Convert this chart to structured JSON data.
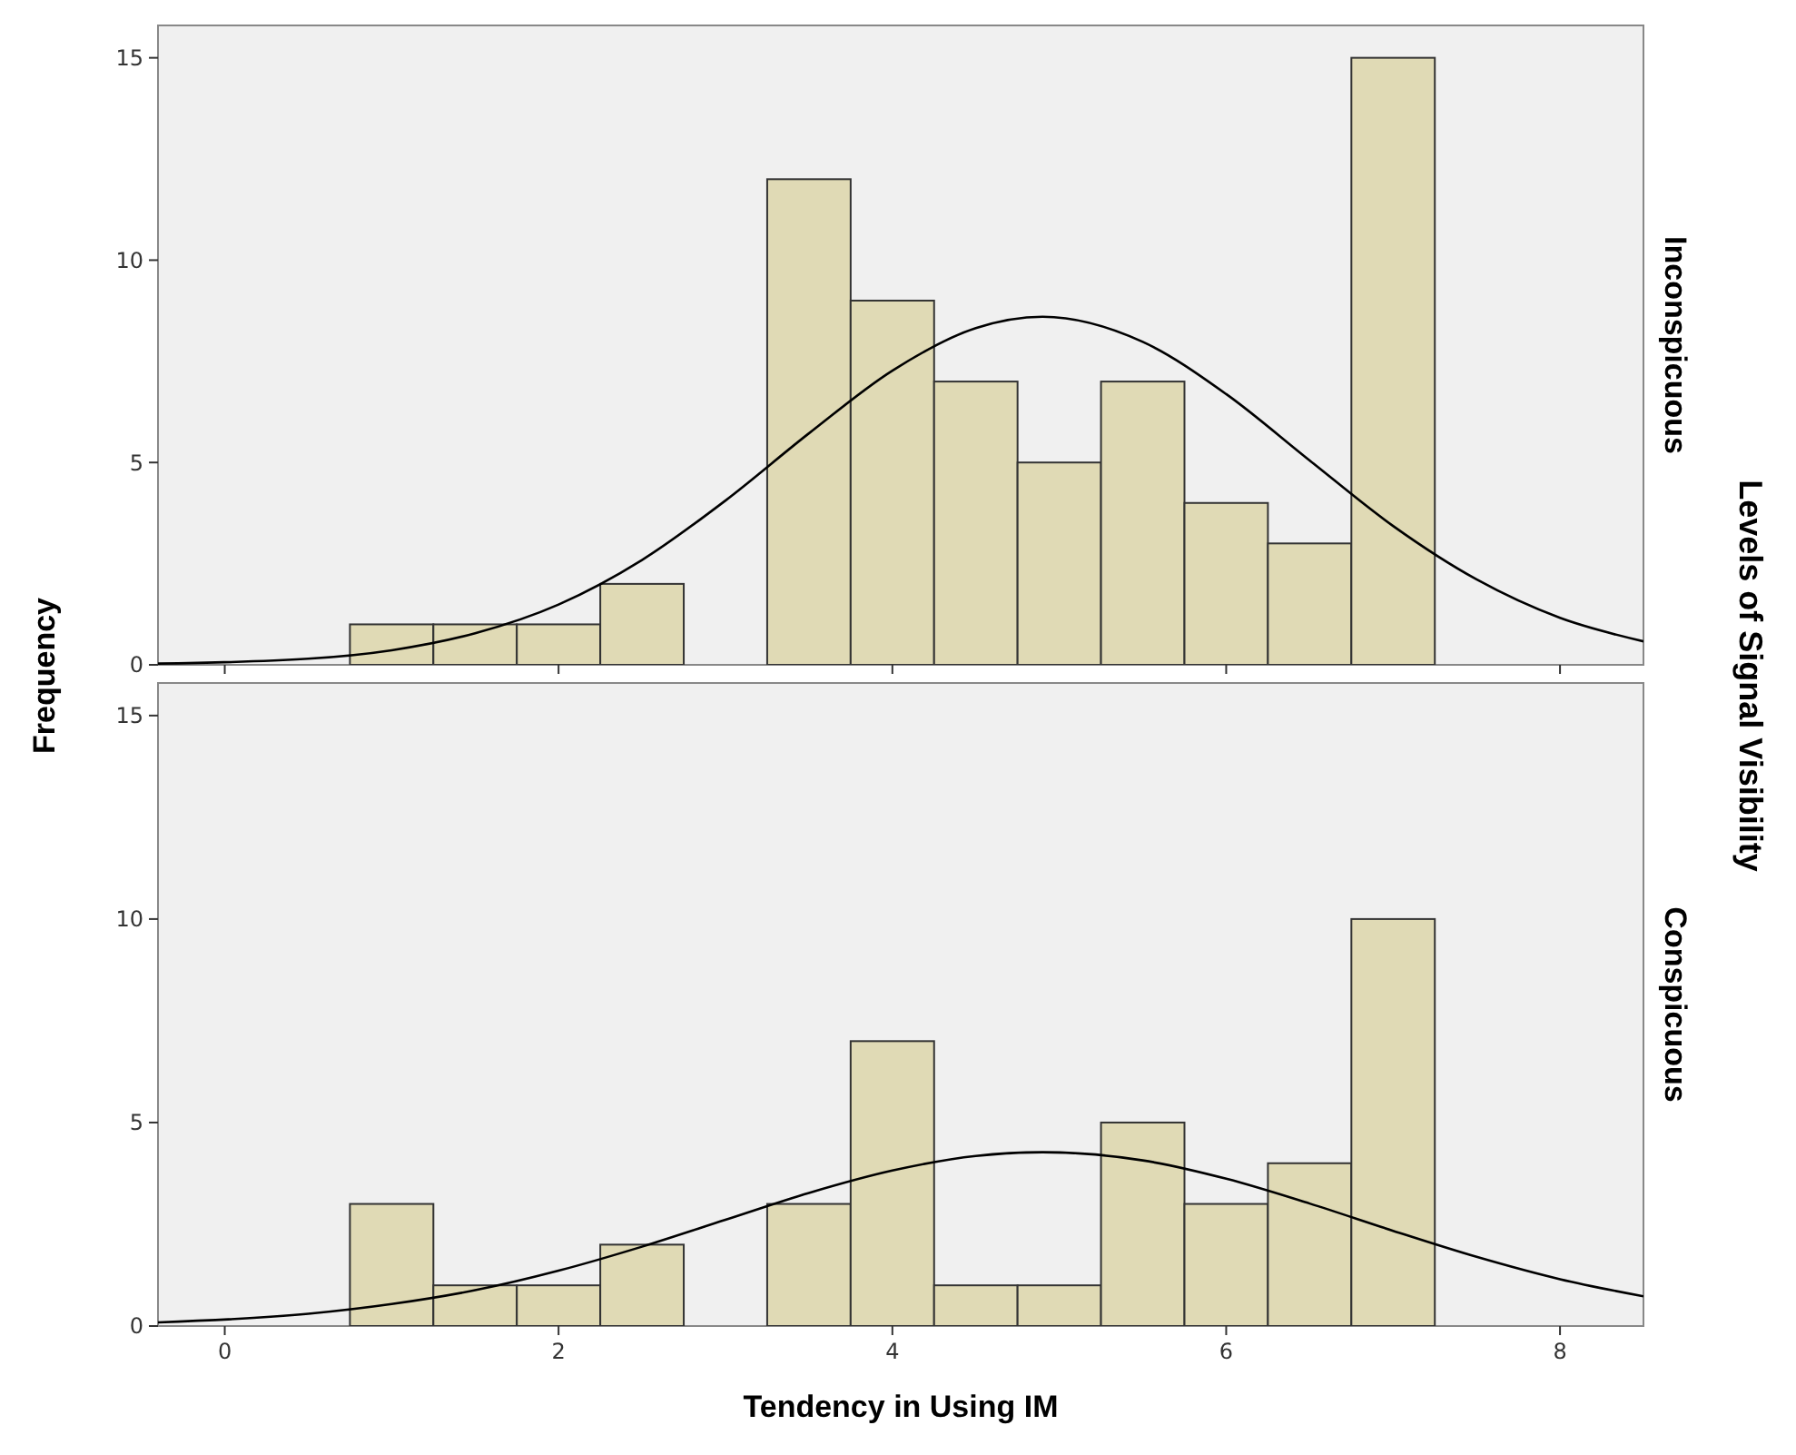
{
  "chart_data": [
    {
      "type": "histogram",
      "title": "Inconspicuous",
      "ylabel": "Frequency",
      "y2label": "Levels of Signal Visibility",
      "xlim": [
        -0.4,
        8.5
      ],
      "xticks": [
        0,
        2,
        4,
        6,
        8
      ],
      "ylim": [
        0,
        15.8
      ],
      "yticks": [
        0,
        5,
        10,
        15
      ],
      "tick_labels": "y",
      "grid": false,
      "series": [
        {
          "color": "#e0dab5",
          "bins": [
            0.75,
            1.25,
            1.75,
            2.25,
            2.75,
            3.25,
            3.75,
            4.25,
            4.75,
            5.25,
            5.75,
            6.25,
            6.75,
            7.25
          ],
          "values": [
            1,
            1,
            1,
            2,
            0,
            12,
            9,
            7,
            5,
            7,
            4,
            3,
            15
          ]
        },
        {
          "type": "line",
          "color": "#000000",
          "x": [
            -0.4,
            0.5,
            1,
            1.5,
            2,
            2.5,
            3,
            3.5,
            4,
            4.5,
            4.9,
            5.5,
            6,
            6.5,
            7,
            7.5,
            8,
            8.5
          ],
          "values": [
            0.03,
            0.15,
            0.36,
            0.78,
            1.49,
            2.59,
            4.06,
            5.72,
            7.27,
            8.32,
            8.6,
            7.98,
            6.69,
            5.05,
            3.43,
            2.11,
            1.16,
            0.58
          ]
        }
      ]
    },
    {
      "type": "histogram",
      "title": "Conspicuous",
      "xlabel": "Tendency in Using IM",
      "xlim": [
        -0.4,
        8.5
      ],
      "xticks": [
        0,
        2,
        4,
        6,
        8
      ],
      "ylim": [
        0,
        15.8
      ],
      "yticks": [
        0,
        5,
        10,
        15
      ],
      "grid": false,
      "series": [
        {
          "color": "#e0dab5",
          "bins": [
            0.75,
            1.25,
            1.75,
            2.25,
            2.75,
            3.25,
            3.75,
            4.25,
            4.75,
            5.25,
            5.75,
            6.25,
            6.75,
            7.25
          ],
          "values": [
            3,
            1,
            1,
            2,
            0,
            3,
            7,
            1,
            1,
            5,
            3,
            4,
            10
          ]
        },
        {
          "type": "line",
          "color": "#000000",
          "x": [
            -0.4,
            0.5,
            1,
            1.5,
            2,
            2.5,
            3,
            3.5,
            4,
            4.5,
            4.9,
            5.5,
            6,
            6.5,
            7,
            7.5,
            8,
            8.5
          ],
          "values": [
            0.09,
            0.3,
            0.54,
            0.88,
            1.36,
            1.95,
            2.61,
            3.27,
            3.82,
            4.18,
            4.27,
            4.07,
            3.62,
            3.01,
            2.34,
            1.7,
            1.15,
            0.73
          ]
        }
      ]
    }
  ]
}
